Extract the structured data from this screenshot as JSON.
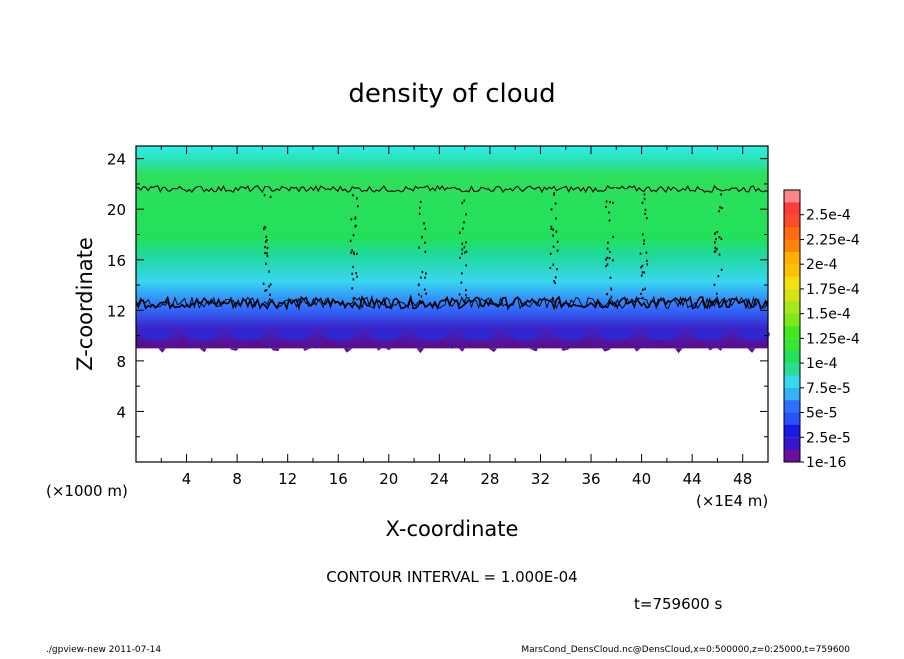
{
  "chart_data": {
    "type": "heatmap",
    "title": "density of cloud",
    "xlabel": "X-coordinate",
    "ylabel": "Z-coordinate",
    "x_unit_label": "(×1E4 m)",
    "y_unit_label": "(×1000 m)",
    "xlim": [
      0,
      50
    ],
    "ylim": [
      0,
      25
    ],
    "x_ticks": [
      4,
      8,
      12,
      16,
      20,
      24,
      28,
      32,
      36,
      40,
      44,
      48
    ],
    "x_tick_labels": [
      "4",
      "8",
      "12",
      "16",
      "20",
      "24",
      "28",
      "32",
      "36",
      "40",
      "44",
      "48"
    ],
    "y_ticks": [
      4,
      8,
      12,
      16,
      20,
      24
    ],
    "y_tick_labels": [
      "4",
      "8",
      "12",
      "16",
      "20",
      "24"
    ],
    "colorbar": {
      "labels": [
        "1e-16",
        "2.5e-5",
        "5e-5",
        "7.5e-5",
        "1e-4",
        "1.25e-4",
        "1.5e-4",
        "1.75e-4",
        "2e-4",
        "2.25e-4",
        "2.5e-4"
      ],
      "colors": [
        "#6a0fa0",
        "#1a1ae6",
        "#2f6fff",
        "#39d6f0",
        "#22e05a",
        "#44e81e",
        "#a6e81a",
        "#f0e014",
        "#ffb000",
        "#ff6a14",
        "#ff3a3a",
        "#ffb0b0"
      ]
    },
    "layers": [
      {
        "z_range": [
          0,
          9
        ],
        "level": "none"
      },
      {
        "z_range": [
          9,
          10
        ],
        "level": "1e-16 to 2.5e-5"
      },
      {
        "z_range": [
          10,
          11.5
        ],
        "level": "2.5e-5 to 7.5e-5"
      },
      {
        "z_range": [
          11.5,
          13
        ],
        "level": "7.5e-5 to 1e-4"
      },
      {
        "z_range": [
          13,
          21
        ],
        "level": "1e-4 to 1.25e-4"
      },
      {
        "z_range": [
          21,
          25
        ],
        "level": "7.5e-5 to 1e-4"
      }
    ],
    "contour_lines_z": [
      12.6,
      21.6
    ]
  },
  "annotations": {
    "contour_interval": "CONTOUR INTERVAL = 1.000E-04",
    "time": "t=759600 s",
    "footer_left": "./gpview-new  2011-07-14",
    "footer_right": "MarsCond_DensCloud.nc@DensCloud,x=0:500000,z=0:25000,t=759600"
  }
}
